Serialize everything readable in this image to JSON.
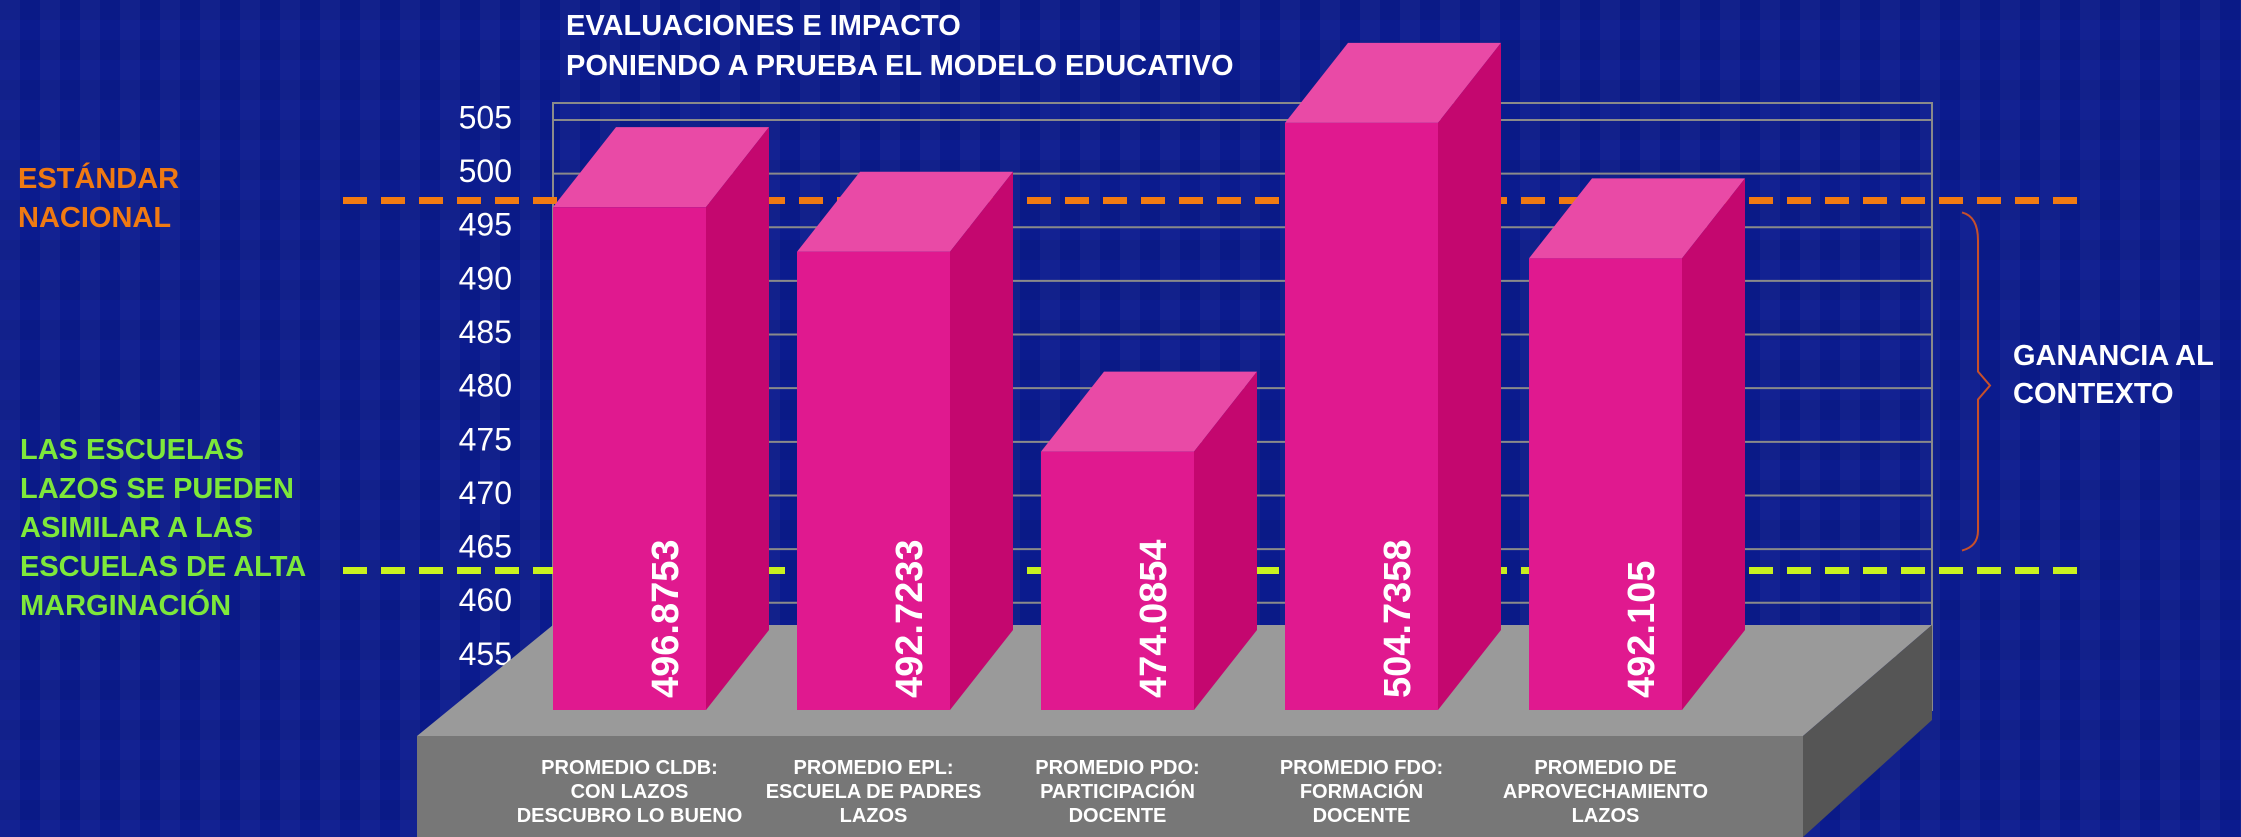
{
  "chart_data": {
    "type": "bar3d",
    "title": "EVALUACIONES E IMPACTO",
    "subtitle": "PONIENDO A PRUEBA EL MODELO EDUCATIVO",
    "categories": [
      "PROMEDIO CLDB:\nCON LAZOS\nDESCUBRO LO BUENO",
      "PROMEDIO EPL:\nESCUELA DE PADRES\nLAZOS",
      "PROMEDIO PDO:\nPARTICIPACIÓN\nDOCENTE",
      "PROMEDIO FDO:\nFORMACIÓN\nDOCENTE",
      "PROMEDIO DE\nAPROVECHAMIENTO\nLAZOS"
    ],
    "values": [
      496.8753,
      492.7233,
      474.0854,
      504.7358,
      492.105
    ],
    "color": "#e0198f",
    "ylim": [
      450,
      505
    ],
    "yticks": [
      455,
      460,
      465,
      470,
      475,
      480,
      485,
      490,
      495,
      500,
      505
    ],
    "grid": true,
    "reference_lines": [
      {
        "label": "ESTÁNDAR\nNACIONAL",
        "value": 497.5,
        "color": "#f07a12"
      },
      {
        "label": "LAS ESCUELAS\nLAZOS SE PUEDEN\nASIMILAR A LAS\nESCUELAS DE ALTA\nMARGINACIÓN",
        "value": 463,
        "color": "#c8f01e"
      }
    ],
    "annotation": "GANANCIA AL\nCONTEXTO"
  }
}
